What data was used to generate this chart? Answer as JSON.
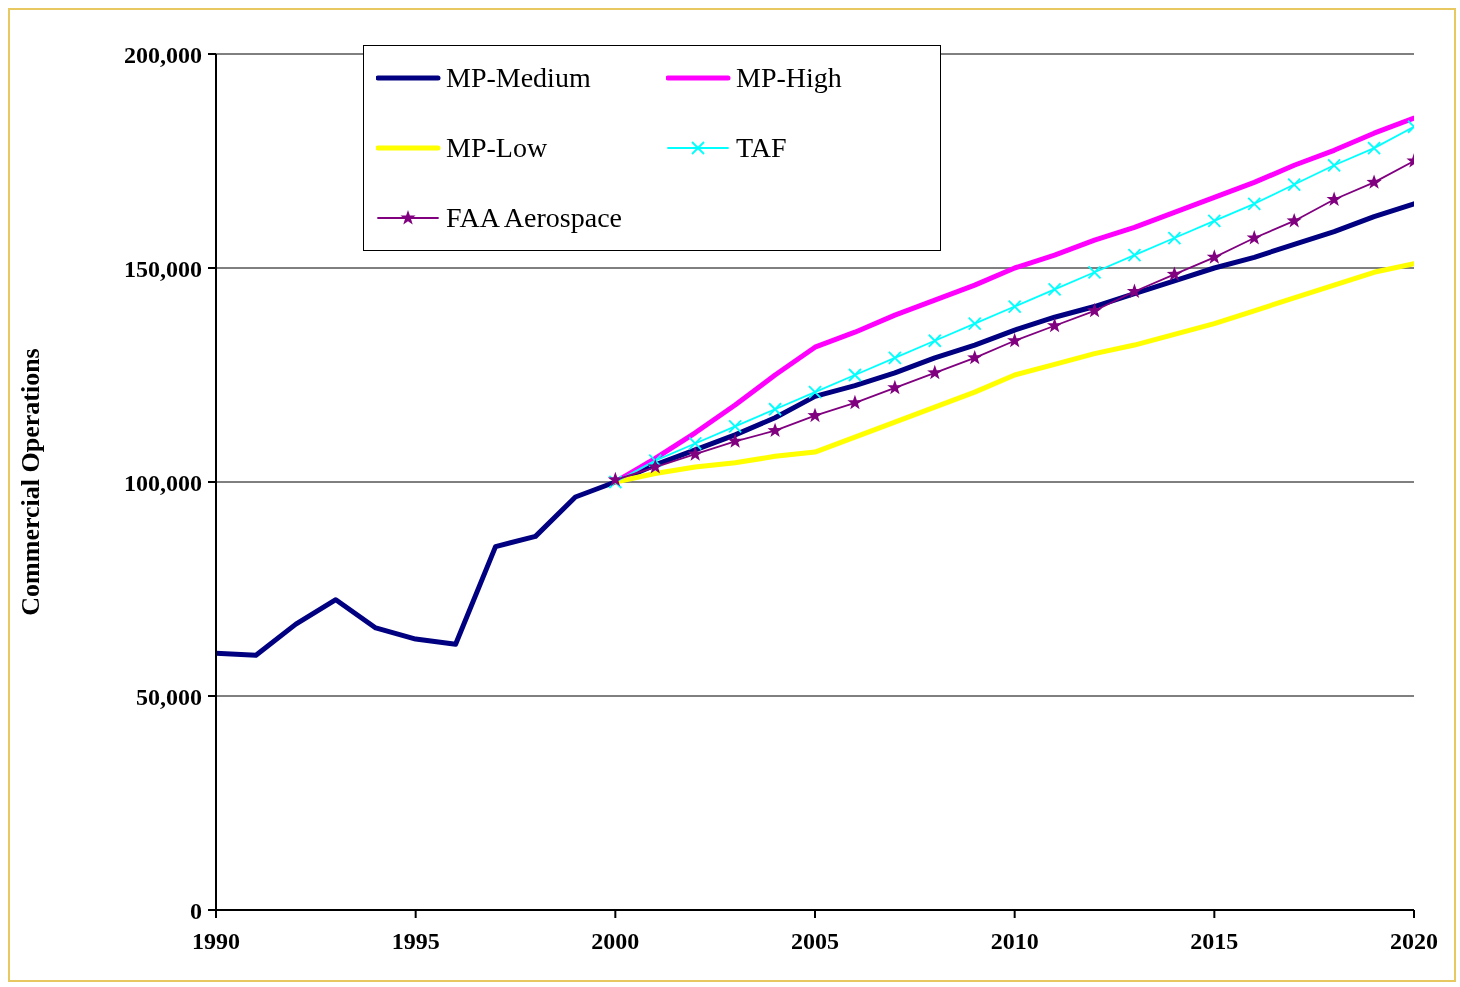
{
  "chart_data": {
    "type": "line",
    "ylabel": "Commercial Operations",
    "x": [
      1990,
      1991,
      1992,
      1993,
      1994,
      1995,
      1996,
      1997,
      1998,
      1999,
      2000,
      2001,
      2002,
      2003,
      2004,
      2005,
      2006,
      2007,
      2008,
      2009,
      2010,
      2011,
      2012,
      2013,
      2014,
      2015,
      2016,
      2017,
      2018,
      2019,
      2020
    ],
    "xlim": [
      1990,
      2020
    ],
    "xticks": [
      1990,
      1995,
      2000,
      2005,
      2010,
      2015,
      2020
    ],
    "ylim": [
      0,
      200000
    ],
    "yticks": [
      {
        "value": 0,
        "label": "0"
      },
      {
        "value": 50000,
        "label": "50,000"
      },
      {
        "value": 100000,
        "label": "100,000"
      },
      {
        "value": 150000,
        "label": "150,000"
      },
      {
        "value": 200000,
        "label": "200,000"
      }
    ],
    "grid": "y",
    "legend": "top left",
    "series": [
      {
        "name": "MP-Medium",
        "color": "#000080",
        "marker": "none",
        "values": [
          60000,
          59500,
          66800,
          72500,
          65900,
          63300,
          62100,
          84900,
          87300,
          96500,
          100000,
          104000,
          107500,
          111000,
          115000,
          120000,
          122500,
          125500,
          129000,
          132000,
          135500,
          138500,
          141000,
          144000,
          147000,
          150000,
          152500,
          155500,
          158500,
          162000,
          165000
        ]
      },
      {
        "name": "MP-High",
        "color": "#ff00ff",
        "marker": "none",
        "values": [
          null,
          null,
          null,
          null,
          null,
          null,
          null,
          null,
          null,
          null,
          100000,
          105500,
          111500,
          118000,
          125000,
          131500,
          135000,
          139000,
          142500,
          146000,
          150000,
          153000,
          156500,
          159500,
          163000,
          166500,
          170000,
          174000,
          177500,
          181500,
          185000
        ]
      },
      {
        "name": "MP-Low",
        "color": "#ffff00",
        "marker": "none",
        "values": [
          null,
          null,
          null,
          null,
          null,
          null,
          null,
          null,
          null,
          null,
          100000,
          102000,
          103500,
          104500,
          106000,
          107000,
          110500,
          114000,
          117500,
          121000,
          125000,
          127500,
          130000,
          132000,
          134500,
          137000,
          140000,
          143000,
          146000,
          149000,
          151000
        ]
      },
      {
        "name": "TAF",
        "color": "#00ffff",
        "marker": "cross",
        "values": [
          null,
          null,
          null,
          null,
          null,
          null,
          null,
          null,
          null,
          null,
          100000,
          105000,
          109000,
          113000,
          117000,
          121000,
          125000,
          129000,
          133000,
          137000,
          141000,
          145000,
          149000,
          153000,
          157000,
          161000,
          165000,
          169500,
          174000,
          178000,
          183000
        ]
      },
      {
        "name": "FAA Aerospace",
        "color": "#800080",
        "marker": "star",
        "values": [
          null,
          null,
          null,
          null,
          null,
          null,
          null,
          null,
          null,
          null,
          100500,
          103500,
          106500,
          109500,
          112000,
          115500,
          118500,
          122000,
          125500,
          129000,
          133000,
          136500,
          140000,
          144500,
          148500,
          152500,
          157000,
          161000,
          166000,
          170000,
          175000
        ]
      }
    ]
  }
}
